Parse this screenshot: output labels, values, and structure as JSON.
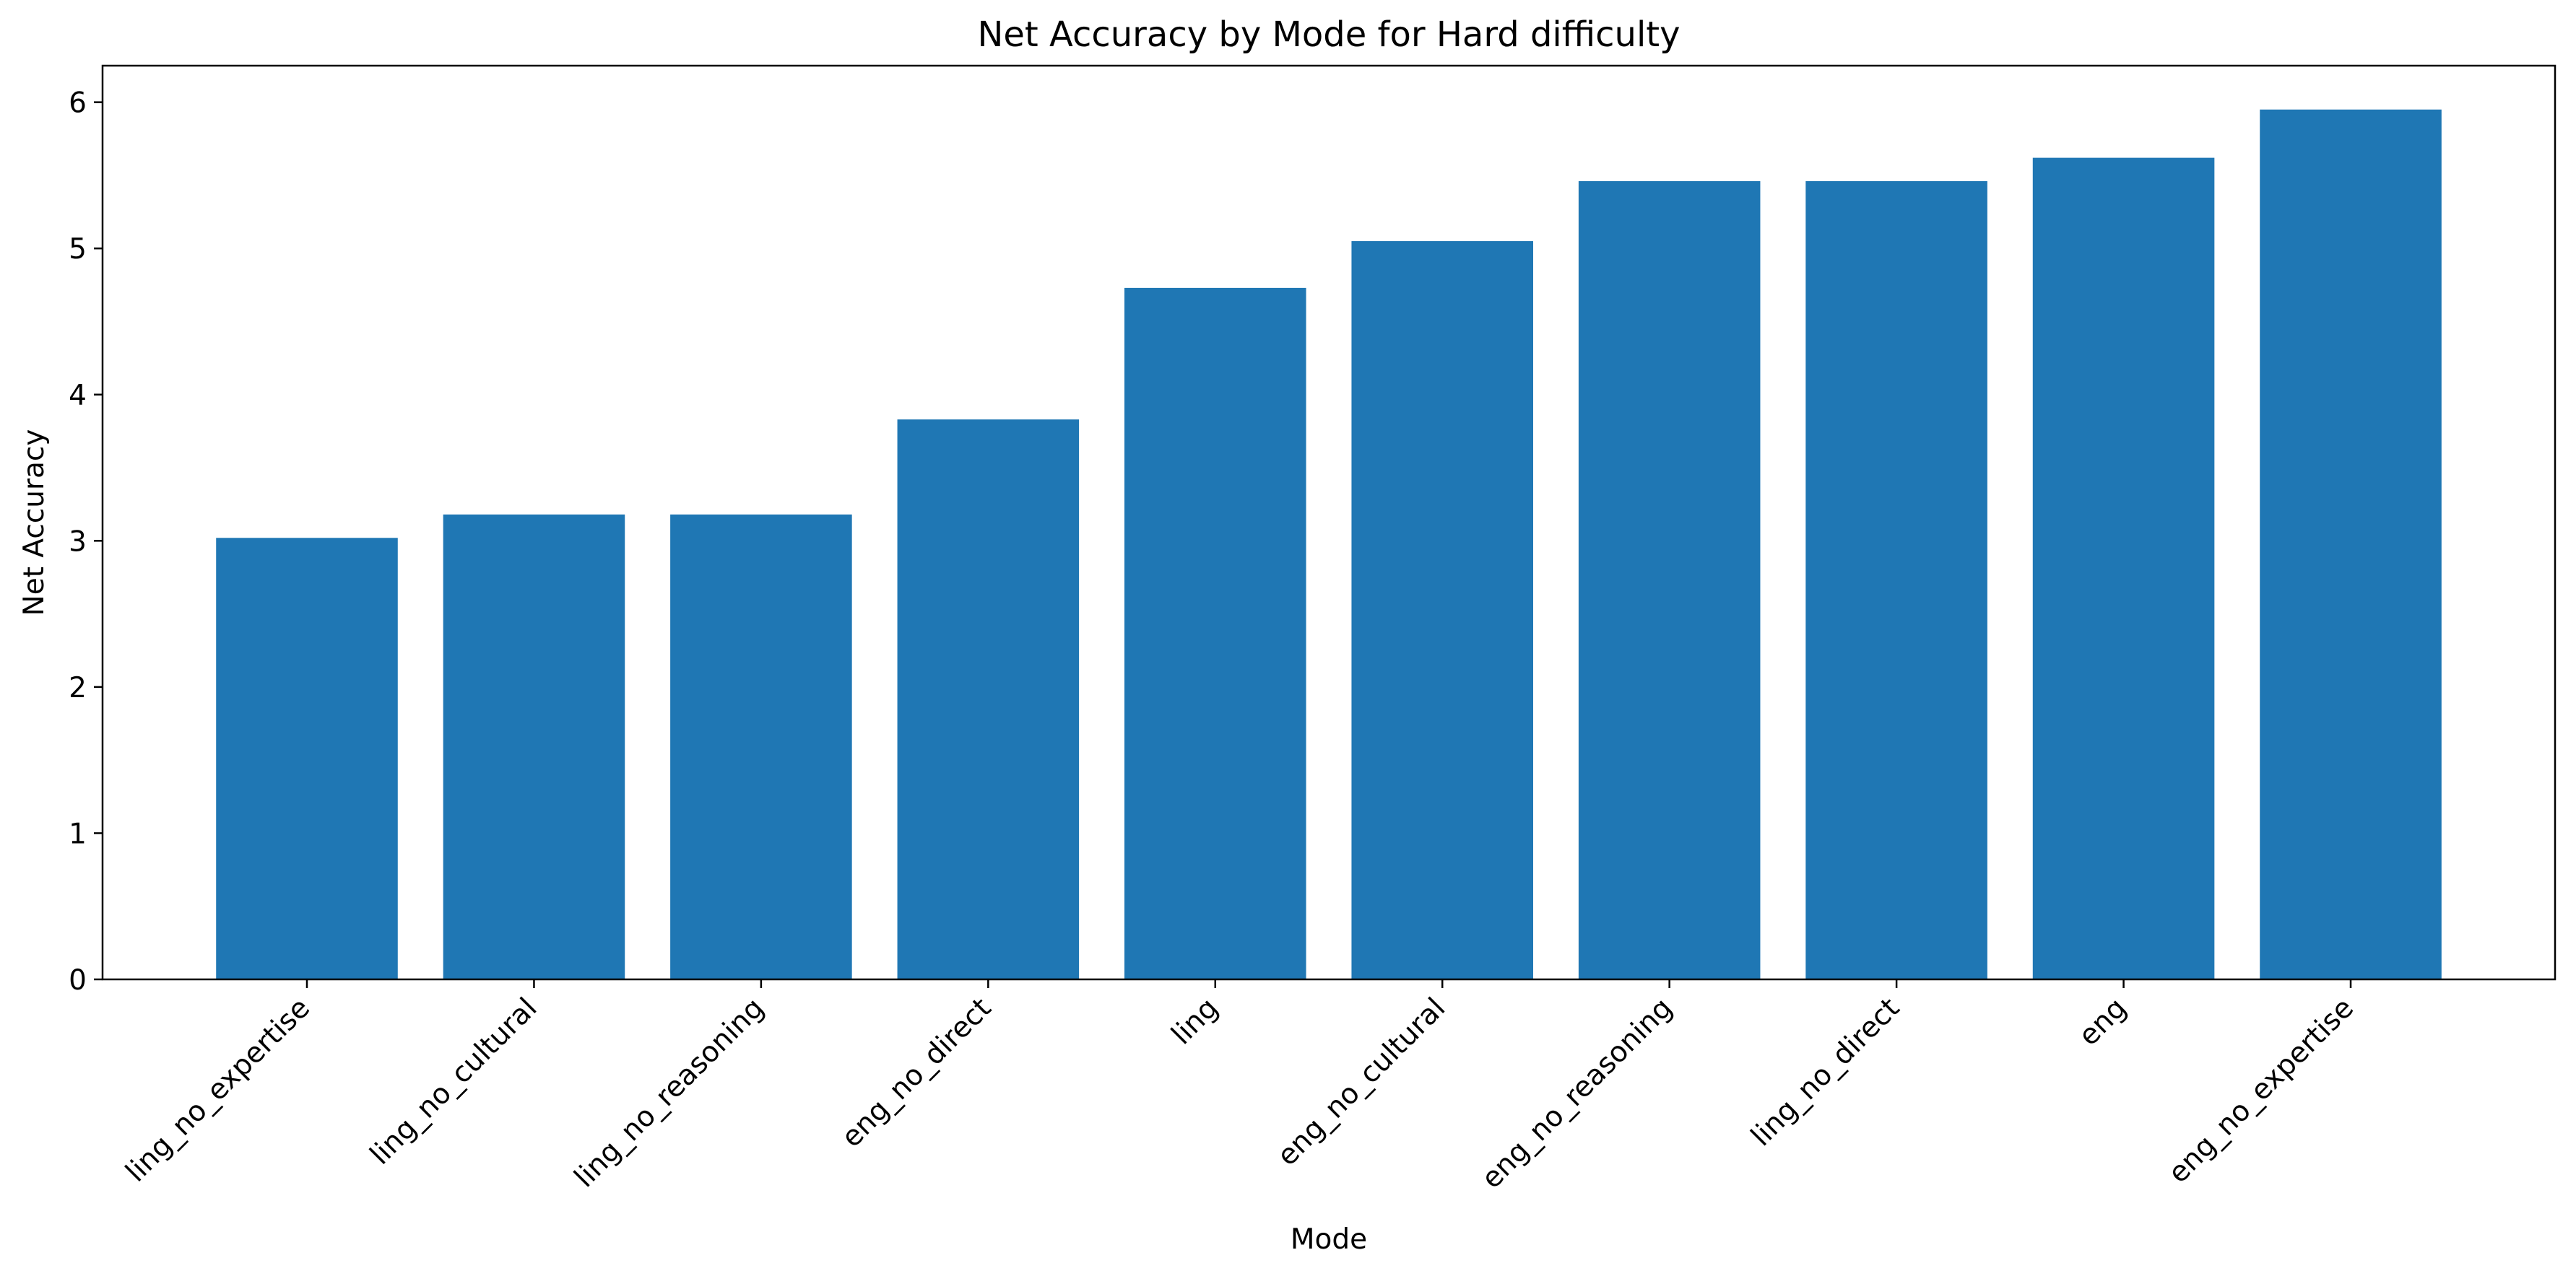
{
  "chart_data": {
    "type": "bar",
    "title": "Net Accuracy by Mode for Hard difficulty",
    "xlabel": "Mode",
    "ylabel": "Net Accuracy",
    "categories": [
      "ling_no_expertise",
      "ling_no_cultural",
      "ling_no_reasoning",
      "eng_no_direct",
      "ling",
      "eng_no_cultural",
      "eng_no_reasoning",
      "ling_no_direct",
      "eng",
      "eng_no_expertise"
    ],
    "values": [
      3.02,
      3.18,
      3.18,
      3.83,
      4.73,
      5.05,
      5.46,
      5.46,
      5.62,
      5.95
    ],
    "ylim": [
      0,
      6.25
    ],
    "yticks": [
      0,
      1,
      2,
      3,
      4,
      5,
      6
    ],
    "bar_color": "#1f77b4",
    "grid": false,
    "legend": "none"
  }
}
